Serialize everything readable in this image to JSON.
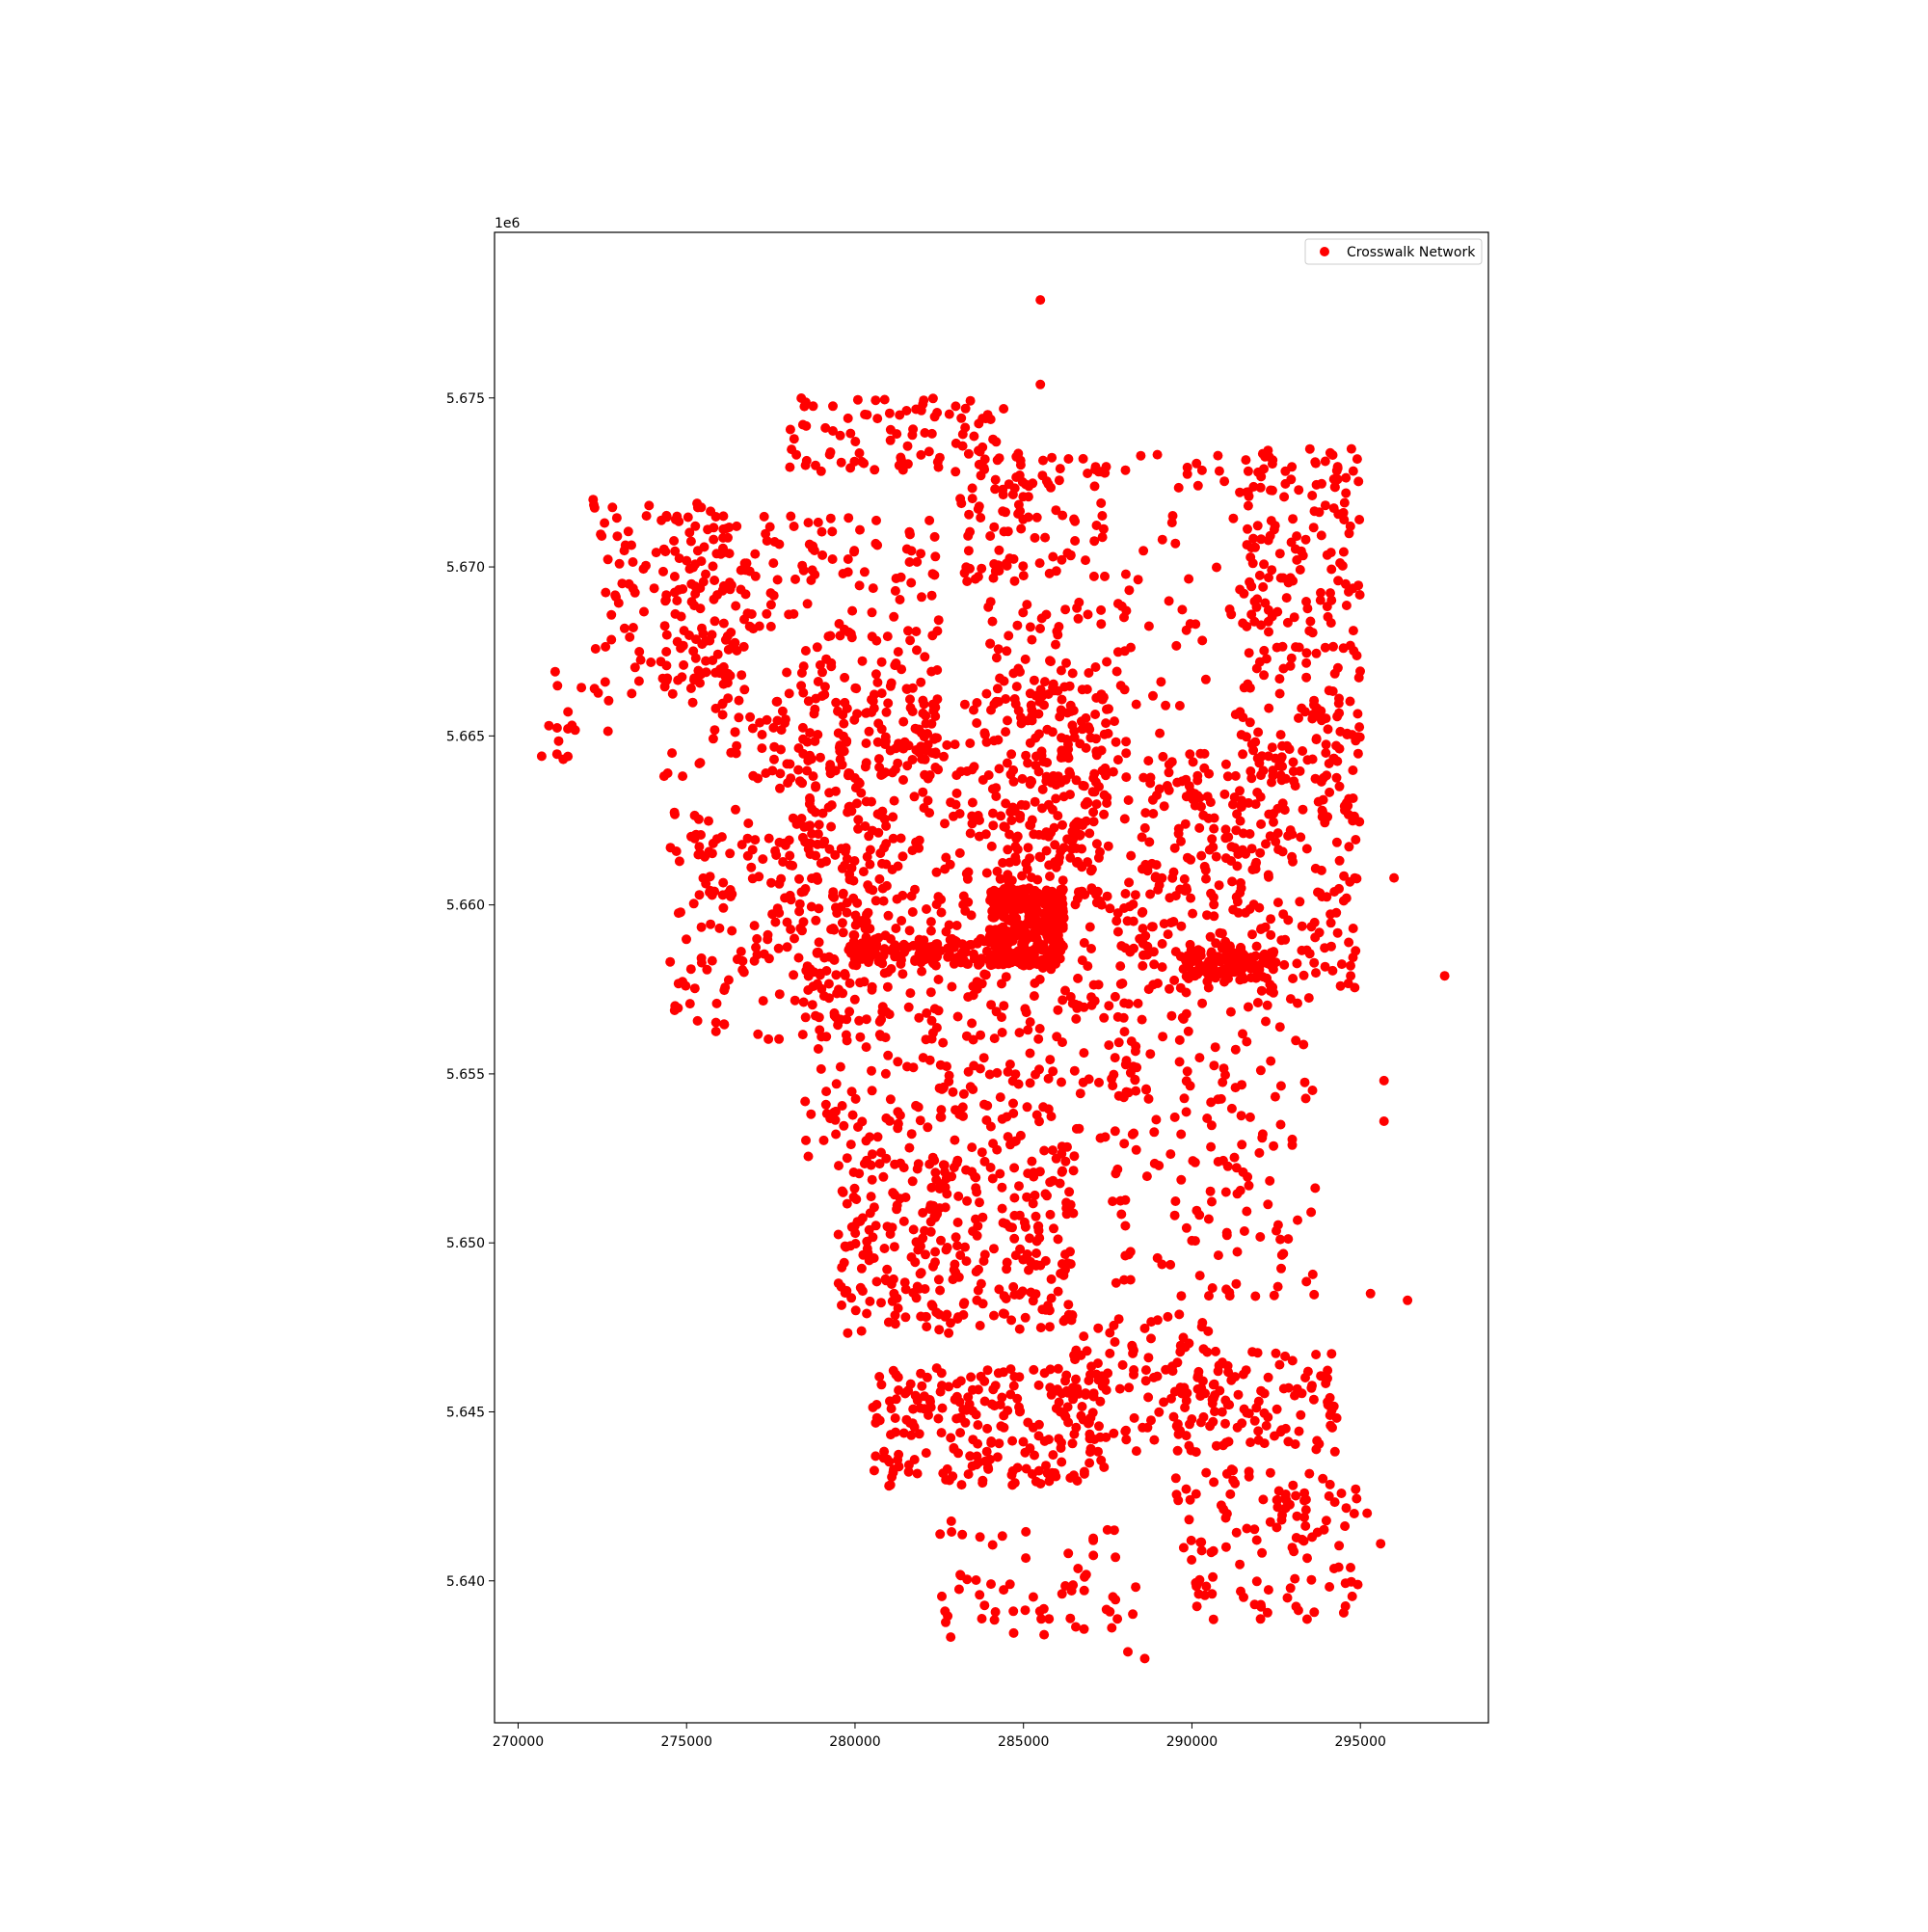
{
  "chart_data": {
    "type": "scatter",
    "title": "",
    "xlabel": "",
    "ylabel": "",
    "y_offset_text": "1e6",
    "xlim": [
      269300,
      298800
    ],
    "ylim": [
      5635800,
      5679900
    ],
    "x_ticks": [
      270000,
      275000,
      280000,
      285000,
      290000,
      295000
    ],
    "x_tick_labels": [
      "270000",
      "275000",
      "280000",
      "285000",
      "290000",
      "295000"
    ],
    "y_ticks": [
      5640000,
      5645000,
      5650000,
      5655000,
      5660000,
      5665000,
      5670000,
      5675000
    ],
    "y_tick_labels": [
      "5.640",
      "5.645",
      "5.650",
      "5.655",
      "5.660",
      "5.665",
      "5.670",
      "5.675"
    ],
    "grid": false,
    "legend_position": "top-right",
    "colors": {
      "marker": "#ff0000",
      "axes": "#000000",
      "legend_border": "#cccccc"
    },
    "series": [
      {
        "name": "Crosswalk Network",
        "color": "#ff0000",
        "outliers": [
          {
            "x": 285500,
            "y": 5677900
          },
          {
            "x": 285500,
            "y": 5675400
          },
          {
            "x": 271100,
            "y": 5666900
          },
          {
            "x": 270700,
            "y": 5664400
          },
          {
            "x": 297500,
            "y": 5657900
          },
          {
            "x": 296400,
            "y": 5648300
          },
          {
            "x": 295600,
            "y": 5641100
          },
          {
            "x": 288600,
            "y": 5637700
          },
          {
            "x": 288100,
            "y": 5637900
          },
          {
            "x": 284700,
            "y": 5639100
          },
          {
            "x": 284600,
            "y": 5639900
          },
          {
            "x": 295700,
            "y": 5654800
          },
          {
            "x": 295700,
            "y": 5653600
          },
          {
            "x": 296000,
            "y": 5660800
          },
          {
            "x": 295200,
            "y": 5642000
          },
          {
            "x": 295300,
            "y": 5648500
          }
        ],
        "clusters": [
          {
            "x": [
              284000,
              286200
            ],
            "y": [
              5658200,
              5660500
            ],
            "n": 320
          },
          {
            "x": [
              279800,
              284500
            ],
            "y": [
              5658200,
              5659000
            ],
            "n": 120
          },
          {
            "x": [
              289800,
              292500
            ],
            "y": [
              5657800,
              5658800
            ],
            "n": 110
          },
          {
            "x": [
              278000,
              284500
            ],
            "y": [
              5672800,
              5675000
            ],
            "n": 90
          },
          {
            "x": [
              283000,
              287500
            ],
            "y": [
              5669500,
              5673500
            ],
            "n": 110
          },
          {
            "x": [
              272200,
              276500
            ],
            "y": [
              5666200,
              5672000
            ],
            "n": 110
          },
          {
            "x": [
              270900,
              273000
            ],
            "y": [
              5664300,
              5666500
            ],
            "n": 14
          },
          {
            "x": [
              274300,
              282500
            ],
            "y": [
              5663500,
              5671500
            ],
            "n": 300
          },
          {
            "x": [
              277500,
              287500
            ],
            "y": [
              5660000,
              5666500
            ],
            "n": 320
          },
          {
            "x": [
              283800,
              288200
            ],
            "y": [
              5660000,
              5669000
            ],
            "n": 210
          },
          {
            "x": [
              288000,
              291800
            ],
            "y": [
              5660500,
              5673500
            ],
            "n": 70
          },
          {
            "x": [
              291500,
              295000
            ],
            "y": [
              5663500,
              5673500
            ],
            "n": 240
          },
          {
            "x": [
              288500,
              295000
            ],
            "y": [
              5657500,
              5664500
            ],
            "n": 300
          },
          {
            "x": [
              274500,
              281000
            ],
            "y": [
              5656000,
              5663000
            ],
            "n": 210
          },
          {
            "x": [
              278500,
              288500
            ],
            "y": [
              5652500,
              5660500
            ],
            "n": 380
          },
          {
            "x": [
              279500,
              286500
            ],
            "y": [
              5647300,
              5652500
            ],
            "n": 300
          },
          {
            "x": [
              287500,
              293800
            ],
            "y": [
              5648400,
              5657500
            ],
            "n": 160
          },
          {
            "x": [
              280500,
              287500
            ],
            "y": [
              5642800,
              5646300
            ],
            "n": 230
          },
          {
            "x": [
              286000,
              290800
            ],
            "y": [
              5643800,
              5648000
            ],
            "n": 90
          },
          {
            "x": [
              289500,
              294300
            ],
            "y": [
              5643800,
              5646800
            ],
            "n": 110
          },
          {
            "x": [
              282500,
              288500
            ],
            "y": [
              5638300,
              5641800
            ],
            "n": 60
          },
          {
            "x": [
              289500,
              295000
            ],
            "y": [
              5638800,
              5643300
            ],
            "n": 120
          }
        ]
      }
    ]
  }
}
